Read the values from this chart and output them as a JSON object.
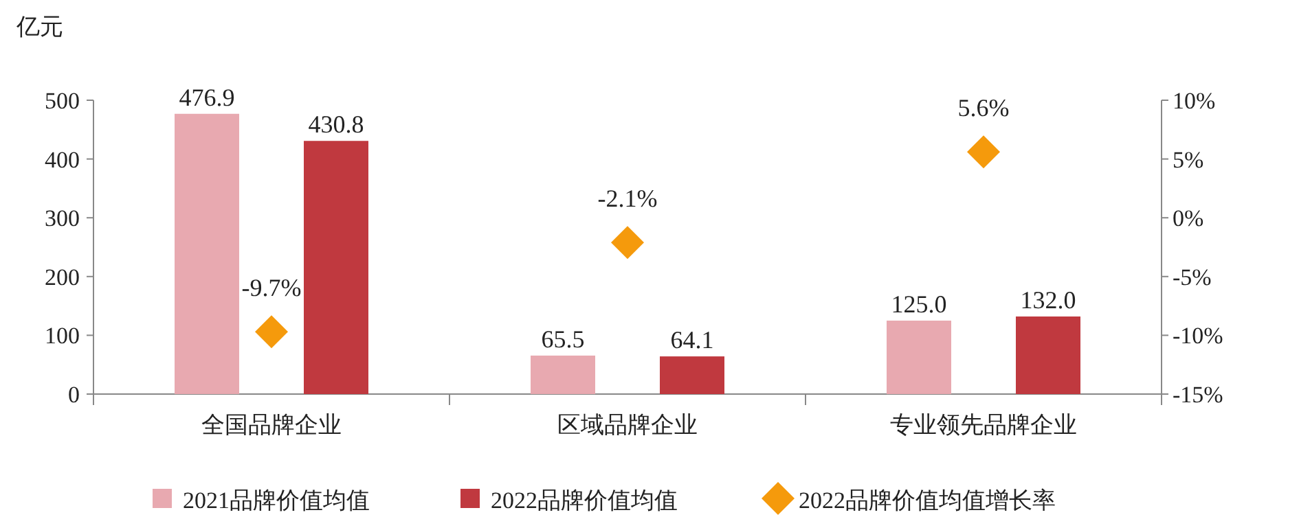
{
  "chart_data": {
    "type": "bar",
    "ylabel": "亿元",
    "categories": [
      "全国品牌企业",
      "区域品牌企业",
      "专业领先品牌企业"
    ],
    "ylim": [
      0,
      500
    ],
    "yticks": [
      0,
      100,
      200,
      300,
      400,
      500
    ],
    "y2lim": [
      -15,
      10
    ],
    "y2ticks": [
      {
        "value": -15,
        "label": "-15%"
      },
      {
        "value": -10,
        "label": "-10%"
      },
      {
        "value": -5,
        "label": "-5%"
      },
      {
        "value": 0,
        "label": "0%"
      },
      {
        "value": 5,
        "label": "5%"
      },
      {
        "value": 10,
        "label": "10%"
      }
    ],
    "legend": "bottom",
    "series": [
      {
        "name": "2021品牌价值均值",
        "color": "#e8a9b0",
        "values": [
          476.9,
          65.5,
          125.0
        ],
        "value_labels": [
          "476.9",
          "65.5",
          "125.0"
        ]
      },
      {
        "name": "2022品牌价值均值",
        "color": "#c0393f",
        "values": [
          430.8,
          64.1,
          132.0
        ],
        "value_labels": [
          "430.8",
          "64.1",
          "132.0"
        ]
      },
      {
        "name": "2022品牌价值均值增长率",
        "type": "scatter",
        "axis": "y2",
        "marker": "diamond",
        "color": "#f59a0c",
        "values": [
          -9.7,
          -2.1,
          5.6
        ],
        "value_labels": [
          "-9.7%",
          "-2.1%",
          "5.6%"
        ]
      }
    ]
  }
}
